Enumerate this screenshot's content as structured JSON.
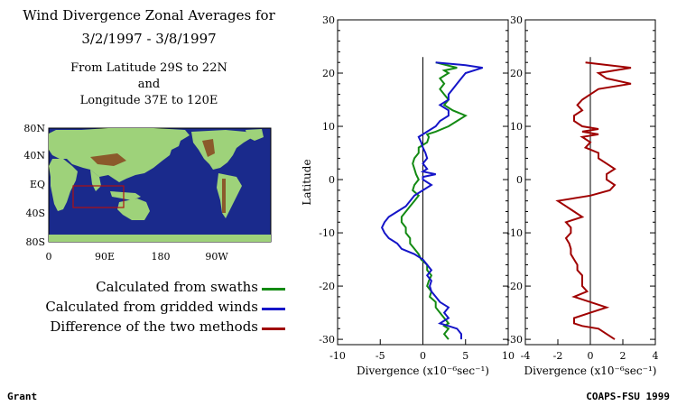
{
  "header": {
    "line1": "Wind Divergence Zonal Averages for",
    "line2": "3/2/1997 - 3/8/1997",
    "line3": "From Latitude 29S to 22N",
    "line4": "and",
    "line5": "Longitude 37E to 120E"
  },
  "map": {
    "lat_labels": [
      "80N",
      "40N",
      "EQ",
      "40S",
      "80S"
    ],
    "lon_labels": [
      "0",
      "90E",
      "180",
      "90W"
    ],
    "colors": {
      "ocean": "#1a2a8c",
      "land": "#9ed27a",
      "highland": "#8b5a2b",
      "box": "#b01010"
    }
  },
  "legend": [
    {
      "label": "Calculated from swaths",
      "color": "#138a13"
    },
    {
      "label": "Calculated from gridded winds",
      "color": "#1515c8"
    },
    {
      "label": "Difference of the two methods",
      "color": "#a00000"
    }
  ],
  "footer": {
    "left": "Grant",
    "right": "COAPS-FSU 1999"
  },
  "chart_data": [
    {
      "type": "line",
      "ylabel": "Latitude",
      "xlabel": "Divergence (x10⁻⁶sec⁻¹)",
      "xlim": [
        -10,
        10
      ],
      "ylim": [
        -31,
        30
      ],
      "xticks": [
        -10,
        -5,
        0,
        5,
        10
      ],
      "yticks": [
        -30,
        -20,
        -10,
        0,
        10,
        20,
        30
      ],
      "series": [
        {
          "color": "#138a13",
          "points": [
            [
              1.5,
              22
            ],
            [
              4,
              21
            ],
            [
              2.5,
              20.5
            ],
            [
              3,
              20
            ],
            [
              2,
              19
            ],
            [
              2.5,
              18
            ],
            [
              2,
              17
            ],
            [
              2.5,
              16
            ],
            [
              3,
              15
            ],
            [
              2.5,
              14
            ],
            [
              3.5,
              13
            ],
            [
              5,
              12
            ],
            [
              4,
              11
            ],
            [
              3,
              10
            ],
            [
              1.5,
              9
            ],
            [
              0.5,
              8.5
            ],
            [
              0.7,
              8
            ],
            [
              0.5,
              7
            ],
            [
              -0.5,
              6
            ],
            [
              -0.5,
              5
            ],
            [
              -1,
              4
            ],
            [
              -1.2,
              3
            ],
            [
              -1,
              2
            ],
            [
              -0.8,
              1
            ],
            [
              -0.5,
              0
            ],
            [
              -1,
              -1
            ],
            [
              -1.2,
              -2
            ],
            [
              -0.5,
              -3
            ],
            [
              -1,
              -4
            ],
            [
              -1.5,
              -5
            ],
            [
              -2,
              -6
            ],
            [
              -2.5,
              -7
            ],
            [
              -2.5,
              -8
            ],
            [
              -2,
              -9
            ],
            [
              -2,
              -10
            ],
            [
              -1.5,
              -11
            ],
            [
              -1.5,
              -12
            ],
            [
              -1,
              -13
            ],
            [
              -0.5,
              -14
            ],
            [
              -0.2,
              -15
            ],
            [
              0.5,
              -16
            ],
            [
              0.5,
              -17
            ],
            [
              1,
              -18
            ],
            [
              0.7,
              -19
            ],
            [
              0.5,
              -20
            ],
            [
              1,
              -21
            ],
            [
              0.8,
              -22
            ],
            [
              1.5,
              -23
            ],
            [
              1.5,
              -24
            ],
            [
              2,
              -25
            ],
            [
              2.5,
              -26
            ],
            [
              3,
              -27
            ],
            [
              2.5,
              -27.5
            ],
            [
              3,
              -28
            ],
            [
              2.5,
              -29
            ],
            [
              3,
              -30
            ]
          ]
        },
        {
          "color": "#1515c8",
          "points": [
            [
              1.5,
              22
            ],
            [
              5,
              21.5
            ],
            [
              7,
              21
            ],
            [
              5,
              20
            ],
            [
              4.5,
              19
            ],
            [
              4,
              18
            ],
            [
              3.5,
              17
            ],
            [
              3,
              16
            ],
            [
              3,
              15
            ],
            [
              2,
              14
            ],
            [
              3,
              13
            ],
            [
              3,
              12
            ],
            [
              2,
              11
            ],
            [
              1.5,
              10
            ],
            [
              0.5,
              9
            ],
            [
              0,
              8.5
            ],
            [
              -0.5,
              8
            ],
            [
              -0.2,
              7
            ],
            [
              0,
              6
            ],
            [
              0.3,
              5
            ],
            [
              0.5,
              4
            ],
            [
              0,
              3
            ],
            [
              0.5,
              2
            ],
            [
              0,
              1.5
            ],
            [
              1.5,
              1
            ],
            [
              0,
              0.5
            ],
            [
              0,
              0
            ],
            [
              1,
              -1
            ],
            [
              0,
              -2
            ],
            [
              -1,
              -3
            ],
            [
              -1.5,
              -4
            ],
            [
              -2,
              -5
            ],
            [
              -3,
              -6
            ],
            [
              -4,
              -7
            ],
            [
              -4.5,
              -8
            ],
            [
              -4.8,
              -9
            ],
            [
              -4.5,
              -10
            ],
            [
              -4,
              -11
            ],
            [
              -3,
              -12
            ],
            [
              -2.5,
              -13
            ],
            [
              -1,
              -14
            ],
            [
              0,
              -15
            ],
            [
              1,
              -17
            ],
            [
              0.5,
              -18
            ],
            [
              1,
              -19
            ],
            [
              0.8,
              -20
            ],
            [
              1,
              -21
            ],
            [
              1.5,
              -22
            ],
            [
              2,
              -23
            ],
            [
              3,
              -24
            ],
            [
              2.5,
              -25
            ],
            [
              3,
              -26
            ],
            [
              2,
              -27
            ],
            [
              3,
              -27.5
            ],
            [
              4,
              -28
            ],
            [
              4.5,
              -29
            ],
            [
              4.5,
              -30
            ]
          ]
        }
      ]
    },
    {
      "type": "line",
      "xlabel": "Divergence (x10⁻⁶sec⁻¹)",
      "xlim": [
        -4,
        4
      ],
      "ylim": [
        -31,
        30
      ],
      "xticks": [
        -4,
        -2,
        0,
        2,
        4
      ],
      "yticks": [
        -30,
        -20,
        -10,
        0,
        10,
        20,
        30
      ],
      "series": [
        {
          "color": "#a00000",
          "points": [
            [
              -0.3,
              22
            ],
            [
              2.5,
              21
            ],
            [
              0.5,
              20
            ],
            [
              1,
              19
            ],
            [
              2.5,
              18
            ],
            [
              0.5,
              17
            ],
            [
              0,
              16
            ],
            [
              -0.5,
              15
            ],
            [
              -0.8,
              14
            ],
            [
              -0.5,
              13
            ],
            [
              -1,
              12
            ],
            [
              -1,
              11
            ],
            [
              -0.5,
              10
            ],
            [
              0.5,
              9.5
            ],
            [
              -0.5,
              9
            ],
            [
              0.5,
              8.5
            ],
            [
              -0.5,
              8
            ],
            [
              0,
              7
            ],
            [
              -0.3,
              6
            ],
            [
              0.5,
              5
            ],
            [
              0.5,
              4
            ],
            [
              1,
              3
            ],
            [
              1.5,
              2
            ],
            [
              1,
              1
            ],
            [
              1,
              0
            ],
            [
              1.5,
              -1
            ],
            [
              1.2,
              -2
            ],
            [
              0,
              -3
            ],
            [
              -2,
              -4
            ],
            [
              -1.5,
              -5
            ],
            [
              -1,
              -6
            ],
            [
              -0.5,
              -7
            ],
            [
              -1.5,
              -8
            ],
            [
              -1.2,
              -9
            ],
            [
              -1.2,
              -10
            ],
            [
              -1.5,
              -11
            ],
            [
              -1.3,
              -12
            ],
            [
              -1.2,
              -13
            ],
            [
              -1.2,
              -14
            ],
            [
              -1,
              -15
            ],
            [
              -0.8,
              -16
            ],
            [
              -0.8,
              -17
            ],
            [
              -0.5,
              -18
            ],
            [
              -0.5,
              -19
            ],
            [
              -0.5,
              -20
            ],
            [
              -0.2,
              -21
            ],
            [
              -1,
              -22
            ],
            [
              0,
              -23
            ],
            [
              1,
              -24
            ],
            [
              0,
              -25
            ],
            [
              -1,
              -26
            ],
            [
              -1,
              -27
            ],
            [
              -0.5,
              -27.5
            ],
            [
              0.5,
              -28
            ],
            [
              1,
              -29
            ],
            [
              1.5,
              -30
            ]
          ]
        }
      ]
    }
  ]
}
